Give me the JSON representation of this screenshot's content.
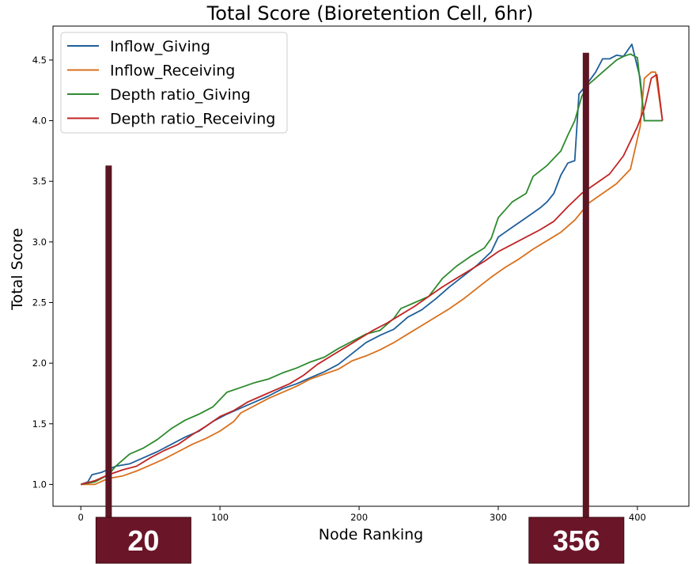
{
  "chart_data": {
    "type": "line",
    "title": "Total Score (Bioretention Cell, 6hr)",
    "xlabel": "Node Ranking",
    "ylabel": "Total Score",
    "xlim": [
      -20,
      437
    ],
    "ylim": [
      0.82,
      4.78
    ],
    "xticks": [
      0,
      100,
      200,
      300,
      400
    ],
    "yticks": [
      1.0,
      1.5,
      2.0,
      2.5,
      3.0,
      3.5,
      4.0,
      4.5
    ],
    "xtick_labels": [
      "0",
      "100",
      "200",
      "300",
      "400"
    ],
    "ytick_labels": [
      "1.0",
      "1.5",
      "2.0",
      "2.5",
      "3.0",
      "3.5",
      "4.0",
      "4.5"
    ],
    "legend_position": "upper-left",
    "grid": false,
    "series": [
      {
        "name": "Inflow_Giving",
        "color": "#1f5f99",
        "points": [
          [
            0,
            1.0
          ],
          [
            5,
            1.02
          ],
          [
            8,
            1.08
          ],
          [
            15,
            1.1
          ],
          [
            25,
            1.15
          ],
          [
            35,
            1.17
          ],
          [
            45,
            1.22
          ],
          [
            55,
            1.27
          ],
          [
            65,
            1.33
          ],
          [
            75,
            1.39
          ],
          [
            85,
            1.44
          ],
          [
            95,
            1.52
          ],
          [
            105,
            1.58
          ],
          [
            115,
            1.63
          ],
          [
            125,
            1.68
          ],
          [
            135,
            1.73
          ],
          [
            145,
            1.79
          ],
          [
            155,
            1.83
          ],
          [
            165,
            1.88
          ],
          [
            175,
            1.93
          ],
          [
            185,
            1.99
          ],
          [
            195,
            2.08
          ],
          [
            205,
            2.17
          ],
          [
            215,
            2.23
          ],
          [
            225,
            2.28
          ],
          [
            235,
            2.38
          ],
          [
            245,
            2.44
          ],
          [
            255,
            2.53
          ],
          [
            265,
            2.63
          ],
          [
            275,
            2.72
          ],
          [
            285,
            2.81
          ],
          [
            295,
            2.92
          ],
          [
            300,
            3.04
          ],
          [
            310,
            3.12
          ],
          [
            320,
            3.2
          ],
          [
            330,
            3.28
          ],
          [
            335,
            3.33
          ],
          [
            340,
            3.4
          ],
          [
            345,
            3.55
          ],
          [
            350,
            3.65
          ],
          [
            355,
            3.67
          ],
          [
            358,
            4.22
          ],
          [
            363,
            4.29
          ],
          [
            370,
            4.4
          ],
          [
            375,
            4.51
          ],
          [
            380,
            4.51
          ],
          [
            385,
            4.54
          ],
          [
            390,
            4.53
          ],
          [
            396,
            4.63
          ],
          [
            402,
            4.35
          ],
          [
            405,
            4.0
          ],
          [
            418,
            4.0
          ]
        ]
      },
      {
        "name": "Inflow_Receiving",
        "color": "#d9701c",
        "points": [
          [
            0,
            1.0
          ],
          [
            10,
            1.0
          ],
          [
            20,
            1.05
          ],
          [
            30,
            1.07
          ],
          [
            40,
            1.11
          ],
          [
            50,
            1.16
          ],
          [
            60,
            1.21
          ],
          [
            70,
            1.27
          ],
          [
            80,
            1.33
          ],
          [
            90,
            1.38
          ],
          [
            100,
            1.44
          ],
          [
            110,
            1.52
          ],
          [
            115,
            1.59
          ],
          [
            125,
            1.65
          ],
          [
            135,
            1.71
          ],
          [
            145,
            1.76
          ],
          [
            155,
            1.81
          ],
          [
            165,
            1.87
          ],
          [
            175,
            1.91
          ],
          [
            185,
            1.95
          ],
          [
            195,
            2.02
          ],
          [
            205,
            2.06
          ],
          [
            215,
            2.11
          ],
          [
            225,
            2.17
          ],
          [
            235,
            2.24
          ],
          [
            245,
            2.31
          ],
          [
            255,
            2.38
          ],
          [
            265,
            2.45
          ],
          [
            275,
            2.53
          ],
          [
            285,
            2.62
          ],
          [
            295,
            2.71
          ],
          [
            305,
            2.79
          ],
          [
            315,
            2.86
          ],
          [
            325,
            2.94
          ],
          [
            335,
            3.01
          ],
          [
            345,
            3.08
          ],
          [
            355,
            3.18
          ],
          [
            365,
            3.32
          ],
          [
            375,
            3.4
          ],
          [
            385,
            3.48
          ],
          [
            395,
            3.6
          ],
          [
            402,
            3.95
          ],
          [
            405,
            4.35
          ],
          [
            410,
            4.4
          ],
          [
            413,
            4.4
          ],
          [
            418,
            4.0
          ]
        ]
      },
      {
        "name": "Depth ratio_Giving",
        "color": "#2e8b2e",
        "points": [
          [
            0,
            1.0
          ],
          [
            10,
            1.02
          ],
          [
            20,
            1.08
          ],
          [
            25,
            1.15
          ],
          [
            35,
            1.25
          ],
          [
            45,
            1.3
          ],
          [
            55,
            1.37
          ],
          [
            65,
            1.46
          ],
          [
            75,
            1.53
          ],
          [
            85,
            1.58
          ],
          [
            95,
            1.64
          ],
          [
            105,
            1.76
          ],
          [
            115,
            1.8
          ],
          [
            125,
            1.84
          ],
          [
            135,
            1.87
          ],
          [
            145,
            1.92
          ],
          [
            155,
            1.96
          ],
          [
            165,
            2.01
          ],
          [
            175,
            2.05
          ],
          [
            185,
            2.12
          ],
          [
            195,
            2.18
          ],
          [
            205,
            2.24
          ],
          [
            215,
            2.27
          ],
          [
            225,
            2.37
          ],
          [
            230,
            2.45
          ],
          [
            240,
            2.5
          ],
          [
            250,
            2.55
          ],
          [
            260,
            2.7
          ],
          [
            270,
            2.8
          ],
          [
            280,
            2.88
          ],
          [
            290,
            2.95
          ],
          [
            295,
            3.03
          ],
          [
            300,
            3.2
          ],
          [
            310,
            3.33
          ],
          [
            320,
            3.4
          ],
          [
            325,
            3.54
          ],
          [
            335,
            3.63
          ],
          [
            345,
            3.75
          ],
          [
            350,
            3.88
          ],
          [
            355,
            4.0
          ],
          [
            360,
            4.2
          ],
          [
            365,
            4.3
          ],
          [
            370,
            4.35
          ],
          [
            375,
            4.4
          ],
          [
            380,
            4.45
          ],
          [
            385,
            4.5
          ],
          [
            390,
            4.53
          ],
          [
            395,
            4.55
          ],
          [
            400,
            4.52
          ],
          [
            405,
            4.0
          ],
          [
            418,
            4.0
          ]
        ]
      },
      {
        "name": "Depth ratio_Receiving",
        "color": "#c02424",
        "points": [
          [
            0,
            1.0
          ],
          [
            10,
            1.03
          ],
          [
            20,
            1.08
          ],
          [
            30,
            1.12
          ],
          [
            40,
            1.15
          ],
          [
            50,
            1.22
          ],
          [
            60,
            1.28
          ],
          [
            70,
            1.33
          ],
          [
            80,
            1.41
          ],
          [
            90,
            1.48
          ],
          [
            100,
            1.56
          ],
          [
            110,
            1.61
          ],
          [
            120,
            1.68
          ],
          [
            130,
            1.73
          ],
          [
            140,
            1.78
          ],
          [
            150,
            1.83
          ],
          [
            160,
            1.9
          ],
          [
            170,
            1.99
          ],
          [
            180,
            2.06
          ],
          [
            190,
            2.13
          ],
          [
            200,
            2.2
          ],
          [
            210,
            2.27
          ],
          [
            220,
            2.33
          ],
          [
            230,
            2.4
          ],
          [
            240,
            2.47
          ],
          [
            250,
            2.55
          ],
          [
            260,
            2.63
          ],
          [
            270,
            2.7
          ],
          [
            280,
            2.77
          ],
          [
            290,
            2.84
          ],
          [
            300,
            2.92
          ],
          [
            310,
            2.98
          ],
          [
            320,
            3.04
          ],
          [
            330,
            3.1
          ],
          [
            340,
            3.17
          ],
          [
            350,
            3.29
          ],
          [
            360,
            3.4
          ],
          [
            370,
            3.48
          ],
          [
            380,
            3.56
          ],
          [
            390,
            3.71
          ],
          [
            400,
            3.95
          ],
          [
            405,
            4.1
          ],
          [
            410,
            4.35
          ],
          [
            414,
            4.38
          ],
          [
            418,
            4.0
          ]
        ]
      }
    ],
    "annotations": [
      {
        "label": "20",
        "x": 20,
        "bar_color": "#5c1522",
        "box_color": "#6b1528",
        "bar_top": 3.63
      },
      {
        "label": "356",
        "x": 363,
        "bar_color": "#5c1522",
        "box_color": "#6b1528",
        "bar_top": 4.56
      }
    ]
  }
}
